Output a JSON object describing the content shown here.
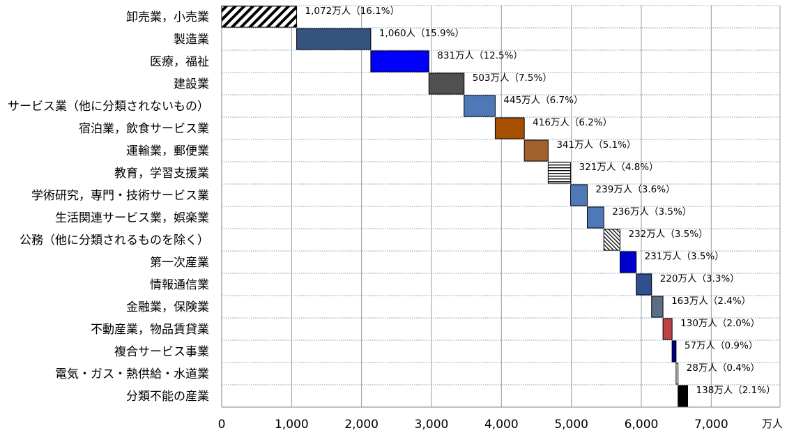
{
  "chart_data": {
    "type": "bar",
    "subtype": "waterfall-horizontal",
    "title": "",
    "xlabel": "",
    "ylabel": "",
    "unit": "万人",
    "xlim": [
      0,
      8000
    ],
    "xticks": [
      {
        "value": 0,
        "label": "0"
      },
      {
        "value": 1000,
        "label": "1,000"
      },
      {
        "value": 2000,
        "label": "2,000"
      },
      {
        "value": 3000,
        "label": "3,000"
      },
      {
        "value": 4000,
        "label": "4,000"
      },
      {
        "value": 5000,
        "label": "5,000"
      },
      {
        "value": 6000,
        "label": "6,000"
      },
      {
        "value": 7000,
        "label": "7,000"
      }
    ],
    "grid": true,
    "legend": "none",
    "items": [
      {
        "category": "卸売業，小売業",
        "value": 1072,
        "label": "1,072万人（16.1%）",
        "color": "#ffffff",
        "pattern": "diagonal"
      },
      {
        "category": "製造業",
        "value": 1060,
        "label": "1,060人（15.9%）",
        "color": "#34537f"
      },
      {
        "category": "医療，福祉",
        "value": 831,
        "label": "831万人（12.5%）",
        "color": "#0000ff"
      },
      {
        "category": "建設業",
        "value": 503,
        "label": "503万人（7.5%）",
        "color": "#505050"
      },
      {
        "category": "サービス業（他に分類されないもの）",
        "value": 445,
        "label": "445万人（6.7%）",
        "color": "#4f78b8"
      },
      {
        "category": "宿泊業，飲食サービス業",
        "value": 416,
        "label": "416万人（6.2%）",
        "color": "#a64f00"
      },
      {
        "category": "運輸業，郵便業",
        "value": 341,
        "label": "341万人（5.1%）",
        "color": "#a0612a"
      },
      {
        "category": "教育，学習支援業",
        "value": 321,
        "label": "321万人（4.8%）",
        "color": "#ffffff",
        "pattern": "horizontal"
      },
      {
        "category": "学術研究，専門・技術サービス業",
        "value": 239,
        "label": "239万人（3.6%）",
        "color": "#4f78b8"
      },
      {
        "category": "生活関連サービス業，娯楽業",
        "value": 236,
        "label": "236万人（3.5%）",
        "color": "#4f78b8"
      },
      {
        "category": "公務（他に分類されるものを除く）",
        "value": 232,
        "label": "232万人（3.5%）",
        "color": "#ffffff",
        "pattern": "dense-diagonal"
      },
      {
        "category": "第一次産業",
        "value": 231,
        "label": "231万人（3.5%）",
        "color": "#0000cc"
      },
      {
        "category": "情報通信業",
        "value": 220,
        "label": "220万人（3.3%）",
        "color": "#2f4f8f"
      },
      {
        "category": "金融業，保険業",
        "value": 163,
        "label": "163万人（2.4%）",
        "color": "#5a6e85"
      },
      {
        "category": "不動産業，物品賃貸業",
        "value": 130,
        "label": "130万人（2.0%）",
        "color": "#c0404a"
      },
      {
        "category": "複合サービス事業",
        "value": 57,
        "label": "57万人（0.9%）",
        "color": "#00008b"
      },
      {
        "category": "電気・ガス・熱供給・水道業",
        "value": 28,
        "label": "28万人（0.4%）",
        "color": "#ffffff",
        "pattern": "dotted"
      },
      {
        "category": "分類不能の産業",
        "value": 138,
        "label": "138万人（2.1%）",
        "color": "#000000"
      }
    ]
  }
}
